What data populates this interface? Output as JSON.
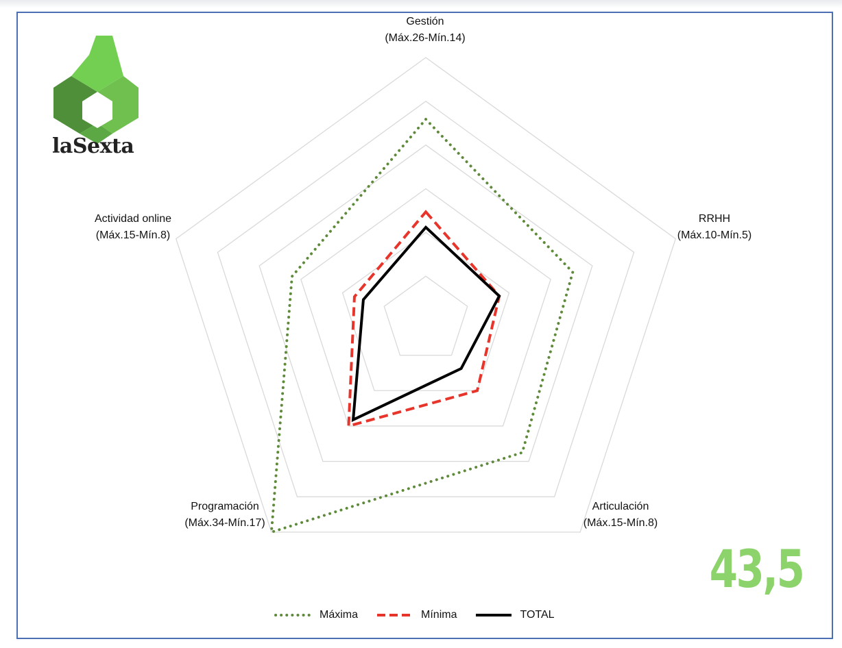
{
  "logo": {
    "text": "laSexta",
    "icon": "lasexta-logo-icon"
  },
  "score": "43,5",
  "colors": {
    "maxima": "#5e8a3a",
    "minima": "#e8352b",
    "total": "#000000",
    "grid": "#d9d9d9",
    "score": "#8bd36a",
    "frame": "#4a6fb5"
  },
  "chart_data": {
    "type": "radar",
    "categories": [
      {
        "name": "Gestión",
        "range": "(Máx.26-Mín.14)"
      },
      {
        "name": "RRHH",
        "range": "(Máx.10-Mín.5)"
      },
      {
        "name": "Articulación",
        "range": "(Máx.15-Mín.8)"
      },
      {
        "name": "Programación",
        "range": "(Máx.34-Mín.17)"
      },
      {
        "name": "Actividad online",
        "range": "(Máx.15-Mín.8)"
      }
    ],
    "rings": 6,
    "series": [
      {
        "name": "Máxima",
        "values": [
          26,
          10,
          15,
          34,
          15
        ],
        "max": [
          34,
          17,
          24,
          34,
          28
        ],
        "style": "dotted"
      },
      {
        "name": "Mínima",
        "values": [
          14,
          5,
          8,
          17,
          8
        ],
        "max": [
          34,
          17,
          24,
          34,
          28
        ],
        "style": "dashed"
      },
      {
        "name": "TOTAL",
        "values": [
          12,
          5,
          5.5,
          16,
          7
        ],
        "max": [
          34,
          17,
          24,
          34,
          28
        ],
        "style": "solid"
      }
    ],
    "legend_position": "bottom"
  }
}
